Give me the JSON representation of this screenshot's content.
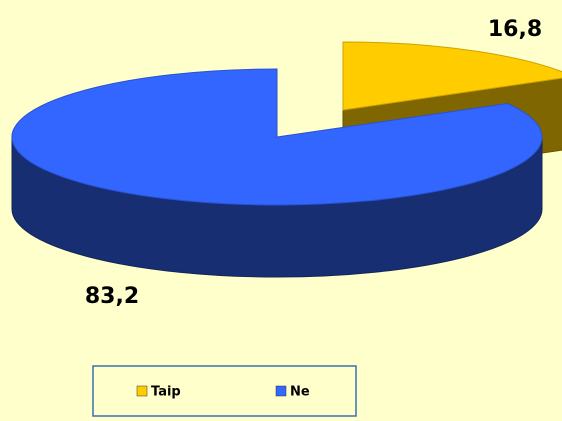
{
  "chart_data": {
    "type": "pie3d",
    "categories": [
      "Taip",
      "Ne"
    ],
    "values": [
      16.8,
      83.2
    ],
    "value_labels": [
      "16,8",
      "83,2"
    ],
    "colors": [
      "#ffcc00",
      "#3366ff"
    ],
    "exploded": [
      true,
      false
    ],
    "legend": "bottom"
  }
}
